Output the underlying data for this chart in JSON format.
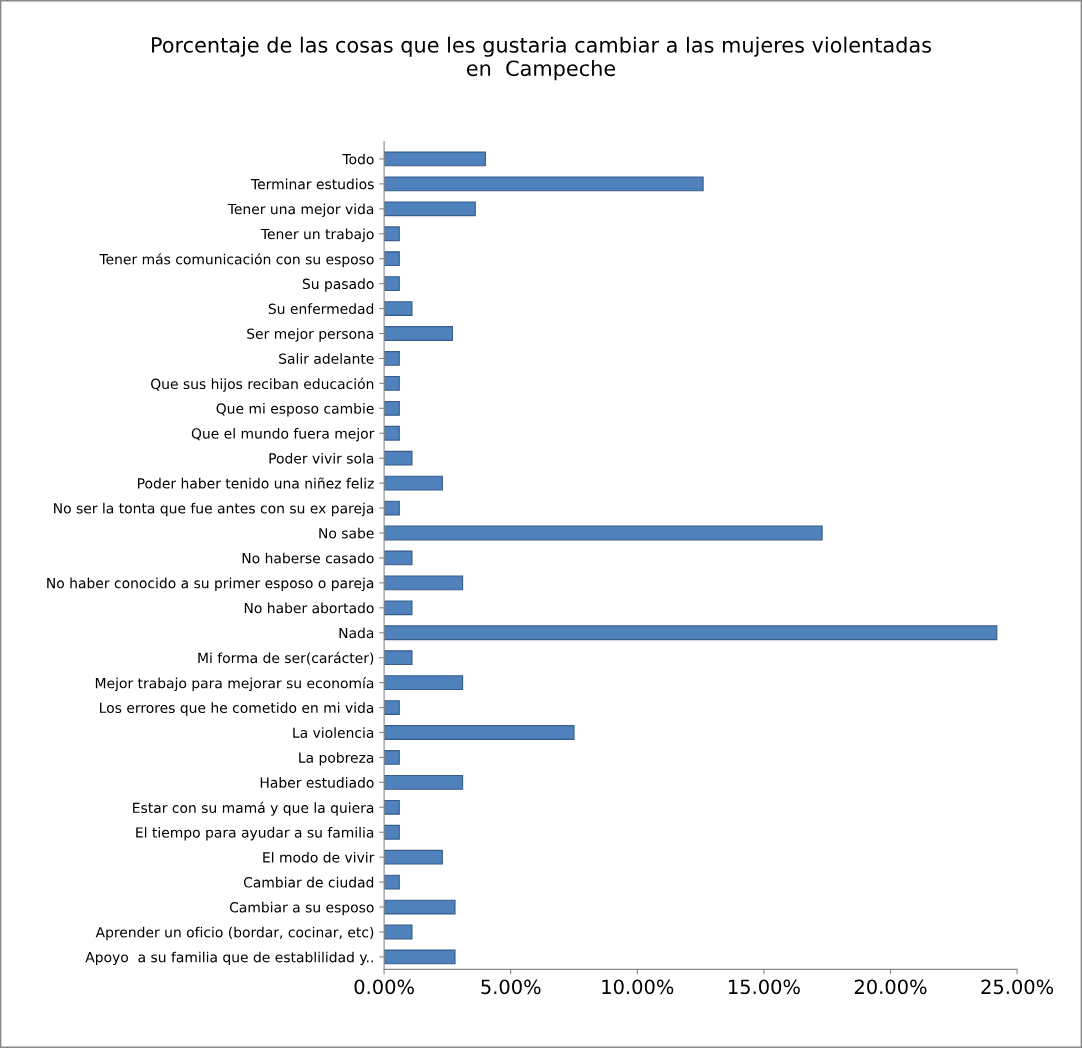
{
  "chart_data": {
    "type": "bar",
    "orientation": "horizontal",
    "title": "Porcentaje de las cosas que les gustaria cambiar a las mujeres violentadas\nen  Campeche",
    "categories": [
      "Todo",
      "Terminar estudios",
      "Tener una mejor vida",
      "Tener un trabajo",
      "Tener más comunicación con su esposo",
      "Su pasado",
      "Su enfermedad",
      "Ser mejor persona",
      "Salir adelante",
      "Que sus hijos reciban educación",
      "Que mi esposo cambie",
      "Que el mundo fuera mejor",
      "Poder vivir sola",
      "Poder haber tenido una niñez feliz",
      "No ser la tonta que fue antes con su ex pareja",
      "No sabe",
      "No haberse casado",
      "No haber conocido a su primer esposo o pareja",
      "No haber abortado",
      "Nada",
      "Mi forma de ser(carácter)",
      "Mejor trabajo para mejorar su economía",
      "Los errores que he cometido en mi vida",
      "La violencia",
      "La pobreza",
      "Haber estudiado",
      "Estar con su mamá y que la quiera",
      "El tiempo para ayudar a su familia",
      "El modo de vivir",
      "Cambiar de ciudad",
      "Cambiar a su esposo",
      "Aprender un oficio (bordar, cocinar, etc)",
      "Apoyo  a su familia que de establilidad y.."
    ],
    "values": [
      4.0,
      12.6,
      3.6,
      0.6,
      0.6,
      0.6,
      1.1,
      2.7,
      0.6,
      0.6,
      0.6,
      0.6,
      1.1,
      2.3,
      0.6,
      17.3,
      1.1,
      3.1,
      1.1,
      24.2,
      1.1,
      3.1,
      0.6,
      7.5,
      0.6,
      3.1,
      0.6,
      0.6,
      2.3,
      0.6,
      2.8,
      1.1,
      2.8
    ],
    "color": "#4f81bd",
    "xlim": [
      0,
      25
    ],
    "xticks": [
      {
        "value": 0,
        "label": "0.00%"
      },
      {
        "value": 5,
        "label": "5.00%"
      },
      {
        "value": 10,
        "label": "10.00%"
      },
      {
        "value": 15,
        "label": "15.00%"
      },
      {
        "value": 20,
        "label": "20.00%"
      },
      {
        "value": 25,
        "label": "25.00%"
      }
    ],
    "grid": false,
    "legend": false
  }
}
